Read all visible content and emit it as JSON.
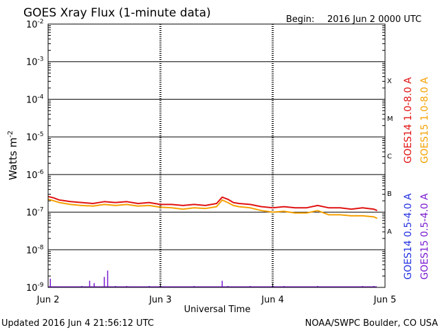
{
  "header": {
    "title": "GOES Xray Flux (1-minute data)",
    "begin_label": "Begin:",
    "begin_value": "2016 Jun 2 0000 UTC"
  },
  "footer": {
    "updated": "Updated 2016 Jun  4 21:56:12 UTC",
    "credit": "NOAA/SWPC Boulder, CO USA"
  },
  "colors": {
    "goes14_long": "#e01010",
    "goes15_long": "#f5a000",
    "goes14_short": "#2030e0",
    "goes15_short": "#7a1ad0"
  },
  "chart_data": {
    "type": "line",
    "title": "GOES Xray Flux (1-minute data)",
    "xlabel": "Universal Time",
    "ylabel": "Watts m",
    "ylabel_sup": "-2",
    "y_scale": "log",
    "ylim": [
      1e-09,
      0.01
    ],
    "xlim": [
      0,
      3
    ],
    "x_ticks": [
      {
        "x": 0,
        "label": "Jun 2"
      },
      {
        "x": 1,
        "label": "Jun 3"
      },
      {
        "x": 2,
        "label": "Jun 4"
      },
      {
        "x": 3,
        "label": "Jun 5"
      }
    ],
    "y_ticks": [
      {
        "exp": -9,
        "base": "10",
        "sup": "-9"
      },
      {
        "exp": -8,
        "base": "10",
        "sup": "-8"
      },
      {
        "exp": -7,
        "base": "10",
        "sup": "-7"
      },
      {
        "exp": -6,
        "base": "10",
        "sup": "-6"
      },
      {
        "exp": -5,
        "base": "10",
        "sup": "-5"
      },
      {
        "exp": -4,
        "base": "10",
        "sup": "-4"
      },
      {
        "exp": -3,
        "base": "10",
        "sup": "-3"
      },
      {
        "exp": -2,
        "base": "10",
        "sup": "-2"
      }
    ],
    "flare_classes": [
      {
        "label": "A",
        "exp": -7.5
      },
      {
        "label": "B",
        "exp": -6.5
      },
      {
        "label": "C",
        "exp": -5.5
      },
      {
        "label": "M",
        "exp": -4.5
      },
      {
        "label": "X",
        "exp": -3.5
      }
    ],
    "grid": true,
    "legend_position": "right",
    "series": [
      {
        "name": "GOES14 1.0-8.0 A",
        "color": "#e01010",
        "x": [
          0,
          0.05,
          0.1,
          0.2,
          0.3,
          0.4,
          0.5,
          0.6,
          0.7,
          0.8,
          0.9,
          1.0,
          1.1,
          1.2,
          1.3,
          1.4,
          1.5,
          1.55,
          1.6,
          1.65,
          1.7,
          1.8,
          1.9,
          2.0,
          2.1,
          2.2,
          2.3,
          2.4,
          2.5,
          2.6,
          2.7,
          2.8,
          2.9,
          2.93
        ],
        "y": [
          2.6e-07,
          2.4e-07,
          2.1e-07,
          1.9e-07,
          1.8e-07,
          1.7e-07,
          1.9e-07,
          1.8e-07,
          1.9e-07,
          1.7e-07,
          1.8e-07,
          1.6e-07,
          1.6e-07,
          1.5e-07,
          1.6e-07,
          1.5e-07,
          1.7e-07,
          2.5e-07,
          2.2e-07,
          1.8e-07,
          1.7e-07,
          1.6e-07,
          1.4e-07,
          1.3e-07,
          1.4e-07,
          1.3e-07,
          1.3e-07,
          1.5e-07,
          1.3e-07,
          1.3e-07,
          1.2e-07,
          1.3e-07,
          1.2e-07,
          1.1e-07
        ]
      },
      {
        "name": "GOES15 1.0-8.0 A",
        "color": "#f5a000",
        "x": [
          0,
          0.05,
          0.1,
          0.2,
          0.3,
          0.4,
          0.5,
          0.6,
          0.7,
          0.8,
          0.9,
          1.0,
          1.1,
          1.2,
          1.3,
          1.4,
          1.5,
          1.55,
          1.6,
          1.65,
          1.7,
          1.8,
          1.9,
          2.0,
          2.1,
          2.2,
          2.3,
          2.4,
          2.5,
          2.6,
          2.7,
          2.8,
          2.9,
          2.93
        ],
        "y": [
          2.2e-07,
          2e-07,
          1.8e-07,
          1.6e-07,
          1.5e-07,
          1.45e-07,
          1.6e-07,
          1.5e-07,
          1.6e-07,
          1.45e-07,
          1.5e-07,
          1.35e-07,
          1.3e-07,
          1.2e-07,
          1.3e-07,
          1.25e-07,
          1.4e-07,
          2.1e-07,
          1.8e-07,
          1.5e-07,
          1.4e-07,
          1.3e-07,
          1.1e-07,
          1e-07,
          1.05e-07,
          9.5e-08,
          9.5e-08,
          1.1e-07,
          8.5e-08,
          8.5e-08,
          8e-08,
          8e-08,
          7.5e-08,
          6.8e-08
        ]
      },
      {
        "name": "GOES14 0.5-4.0 A",
        "color": "#2030e0",
        "x": [
          0.02,
          0.3,
          0.6,
          0.9,
          1.3,
          1.6,
          2.0,
          2.4,
          2.9
        ],
        "y": [
          1e-09,
          1e-09,
          1e-09,
          1e-09,
          1e-09,
          1e-09,
          1e-09,
          1e-09,
          1e-09
        ]
      },
      {
        "name": "GOES15 0.5-4.0 A",
        "color": "#7a1ad0",
        "x": [
          0.02,
          0.37,
          0.41,
          0.5,
          0.53,
          0.7,
          1.0,
          1.3,
          1.55,
          1.8,
          2.1,
          2.4,
          2.8
        ],
        "y": [
          1.7e-09,
          1.5e-09,
          1.3e-09,
          1.9e-09,
          2.8e-09,
          1.05e-09,
          1.05e-09,
          1.05e-09,
          1.5e-09,
          1.05e-09,
          1.05e-09,
          1.05e-09,
          1.05e-09
        ]
      }
    ]
  }
}
